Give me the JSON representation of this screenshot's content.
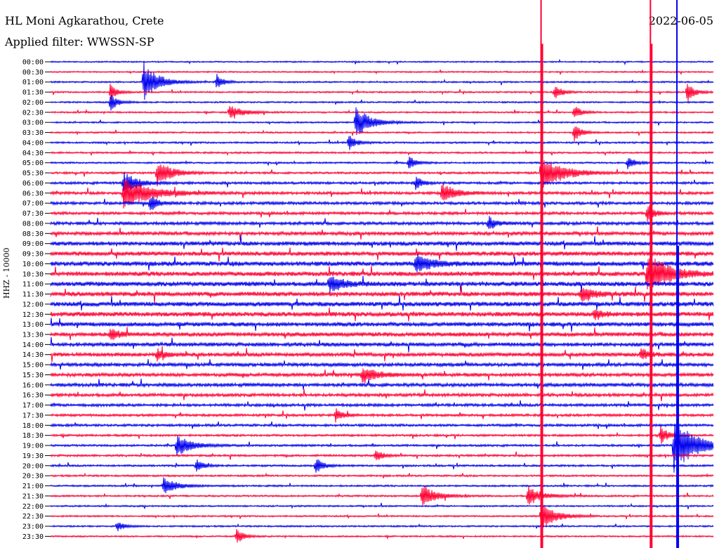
{
  "header": {
    "station": "HL Moni Agkarathou, Crete",
    "date": "2022-06-05",
    "filter": "Applied filter: WWSSN-SP"
  },
  "chart_data": {
    "type": "line",
    "title": "HL Moni Agkarathou, Crete",
    "ylabel": "HHZ - 10000",
    "xlabel": "",
    "colors": {
      "odd": "#0000ee",
      "even": "#ff0033"
    },
    "tick_labels": [
      "00:00",
      "00:30",
      "01:00",
      "01:30",
      "02:00",
      "02:30",
      "03:00",
      "03:30",
      "04:00",
      "04:30",
      "05:00",
      "05:30",
      "06:00",
      "06:30",
      "07:00",
      "07:30",
      "08:00",
      "08:30",
      "09:00",
      "09:30",
      "10:00",
      "10:30",
      "11:00",
      "11:30",
      "12:00",
      "12:30",
      "13:00",
      "13:30",
      "14:00",
      "14:30",
      "15:00",
      "15:30",
      "16:00",
      "16:30",
      "17:00",
      "17:30",
      "18:00",
      "18:30",
      "19:00",
      "19:30",
      "20:00",
      "20:30",
      "21:00",
      "21:30",
      "22:00",
      "22:30",
      "23:00",
      "23:30"
    ],
    "noise_level": [
      0.8,
      0.8,
      0.9,
      0.9,
      0.9,
      0.9,
      0.9,
      0.9,
      1,
      1,
      1,
      1.2,
      1.4,
      1.6,
      1.6,
      1.6,
      1.8,
      2,
      2.4,
      2.4,
      2.6,
      2.6,
      2.6,
      2.6,
      2.6,
      2.6,
      2.4,
      2.4,
      2.2,
      2.2,
      2,
      2,
      2,
      1.8,
      1.6,
      1.4,
      1.4,
      1.2,
      1.2,
      1.2,
      1.1,
      1,
      1,
      1,
      0.9,
      0.9,
      0.9,
      0.9
    ],
    "events": [
      {
        "line": 2,
        "x": 0.14,
        "amp": 30,
        "dur": 0.02
      },
      {
        "line": 2,
        "x": 0.25,
        "amp": 10,
        "dur": 0.01
      },
      {
        "line": 3,
        "x": 0.09,
        "amp": 12,
        "dur": 0.01
      },
      {
        "line": 3,
        "x": 0.76,
        "amp": 12,
        "dur": 0.01
      },
      {
        "line": 3,
        "x": 0.96,
        "amp": 16,
        "dur": 0.01
      },
      {
        "line": 4,
        "x": 0.09,
        "amp": 14,
        "dur": 0.01
      },
      {
        "line": 5,
        "x": 0.27,
        "amp": 10,
        "dur": 0.02
      },
      {
        "line": 5,
        "x": 0.79,
        "amp": 10,
        "dur": 0.01
      },
      {
        "line": 6,
        "x": 0.46,
        "amp": 24,
        "dur": 0.02
      },
      {
        "line": 7,
        "x": 0.79,
        "amp": 14,
        "dur": 0.01
      },
      {
        "line": 8,
        "x": 0.45,
        "amp": 12,
        "dur": 0.01
      },
      {
        "line": 10,
        "x": 0.54,
        "amp": 10,
        "dur": 0.01
      },
      {
        "line": 10,
        "x": 0.87,
        "amp": 10,
        "dur": 0.01
      },
      {
        "line": 11,
        "x": 0.16,
        "amp": 20,
        "dur": 0.02
      },
      {
        "line": 11,
        "x": 0.74,
        "amp": 26,
        "dur": 0.03
      },
      {
        "line": 12,
        "x": 0.11,
        "amp": 16,
        "dur": 0.02
      },
      {
        "line": 12,
        "x": 0.55,
        "amp": 10,
        "dur": 0.01
      },
      {
        "line": 13,
        "x": 0.11,
        "amp": 22,
        "dur": 0.04
      },
      {
        "line": 13,
        "x": 0.59,
        "amp": 14,
        "dur": 0.02
      },
      {
        "line": 14,
        "x": 0.15,
        "amp": 14,
        "dur": 0.01
      },
      {
        "line": 15,
        "x": 0.9,
        "amp": 14,
        "dur": 0.01
      },
      {
        "line": 16,
        "x": 0.66,
        "amp": 12,
        "dur": 0.01
      },
      {
        "line": 20,
        "x": 0.55,
        "amp": 16,
        "dur": 0.02
      },
      {
        "line": 21,
        "x": 0.9,
        "amp": 30,
        "dur": 0.03
      },
      {
        "line": 22,
        "x": 0.42,
        "amp": 12,
        "dur": 0.02
      },
      {
        "line": 23,
        "x": 0.8,
        "amp": 10,
        "dur": 0.02
      },
      {
        "line": 25,
        "x": 0.82,
        "amp": 10,
        "dur": 0.01
      },
      {
        "line": 27,
        "x": 0.09,
        "amp": 10,
        "dur": 0.01
      },
      {
        "line": 29,
        "x": 0.16,
        "amp": 10,
        "dur": 0.01
      },
      {
        "line": 29,
        "x": 0.89,
        "amp": 10,
        "dur": 0.01
      },
      {
        "line": 31,
        "x": 0.47,
        "amp": 12,
        "dur": 0.02
      },
      {
        "line": 35,
        "x": 0.43,
        "amp": 10,
        "dur": 0.01
      },
      {
        "line": 37,
        "x": 0.92,
        "amp": 14,
        "dur": 0.01
      },
      {
        "line": 38,
        "x": 0.19,
        "amp": 16,
        "dur": 0.02
      },
      {
        "line": 38,
        "x": 0.94,
        "amp": 40,
        "dur": 0.03
      },
      {
        "line": 39,
        "x": 0.49,
        "amp": 10,
        "dur": 0.01
      },
      {
        "line": 40,
        "x": 0.22,
        "amp": 10,
        "dur": 0.01
      },
      {
        "line": 40,
        "x": 0.4,
        "amp": 12,
        "dur": 0.01
      },
      {
        "line": 42,
        "x": 0.17,
        "amp": 12,
        "dur": 0.02
      },
      {
        "line": 43,
        "x": 0.56,
        "amp": 16,
        "dur": 0.02
      },
      {
        "line": 43,
        "x": 0.72,
        "amp": 14,
        "dur": 0.02
      },
      {
        "line": 45,
        "x": 0.74,
        "amp": 22,
        "dur": 0.02
      },
      {
        "line": 46,
        "x": 0.1,
        "amp": 8,
        "dur": 0.01
      },
      {
        "line": 47,
        "x": 0.28,
        "amp": 12,
        "dur": 0.01
      }
    ],
    "big_events": [
      {
        "line": 1,
        "x": 0.74,
        "color": "even"
      },
      {
        "line": 1,
        "x": 0.905,
        "color": "even"
      },
      {
        "line": 21,
        "x": 0.945,
        "color": "odd"
      }
    ]
  }
}
